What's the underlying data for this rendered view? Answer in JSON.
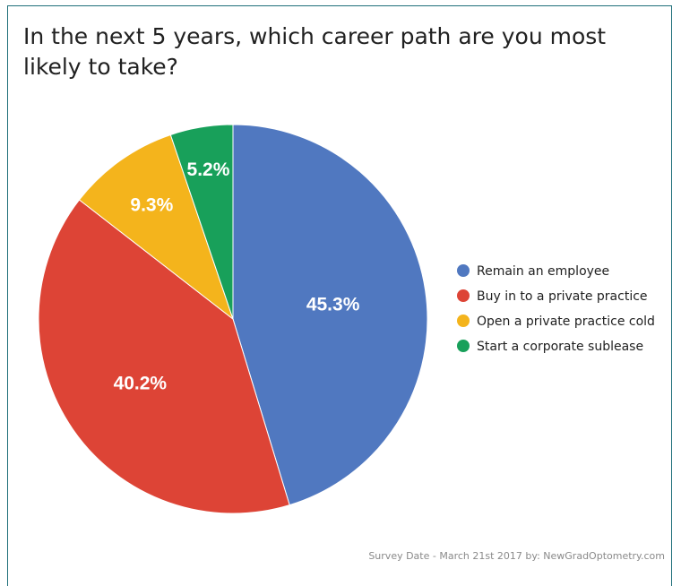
{
  "chart_data": {
    "type": "pie",
    "title": "In the next 5 years, which career path are you most likely to take?",
    "categories": [
      "Remain an employee",
      "Buy in to a private practice",
      "Open a private practice cold",
      "Start a corporate sublease"
    ],
    "values": [
      45.3,
      40.2,
      9.3,
      5.2
    ],
    "value_labels": [
      "45.3%",
      "40.2%",
      "9.3%",
      "5.2%"
    ],
    "colors": [
      "#5078c0",
      "#dd4436",
      "#f4b41c",
      "#18a05a"
    ],
    "legend_position": "right"
  },
  "footer": "Survey Date - March 21st 2017 by: NewGradOptometry.com"
}
